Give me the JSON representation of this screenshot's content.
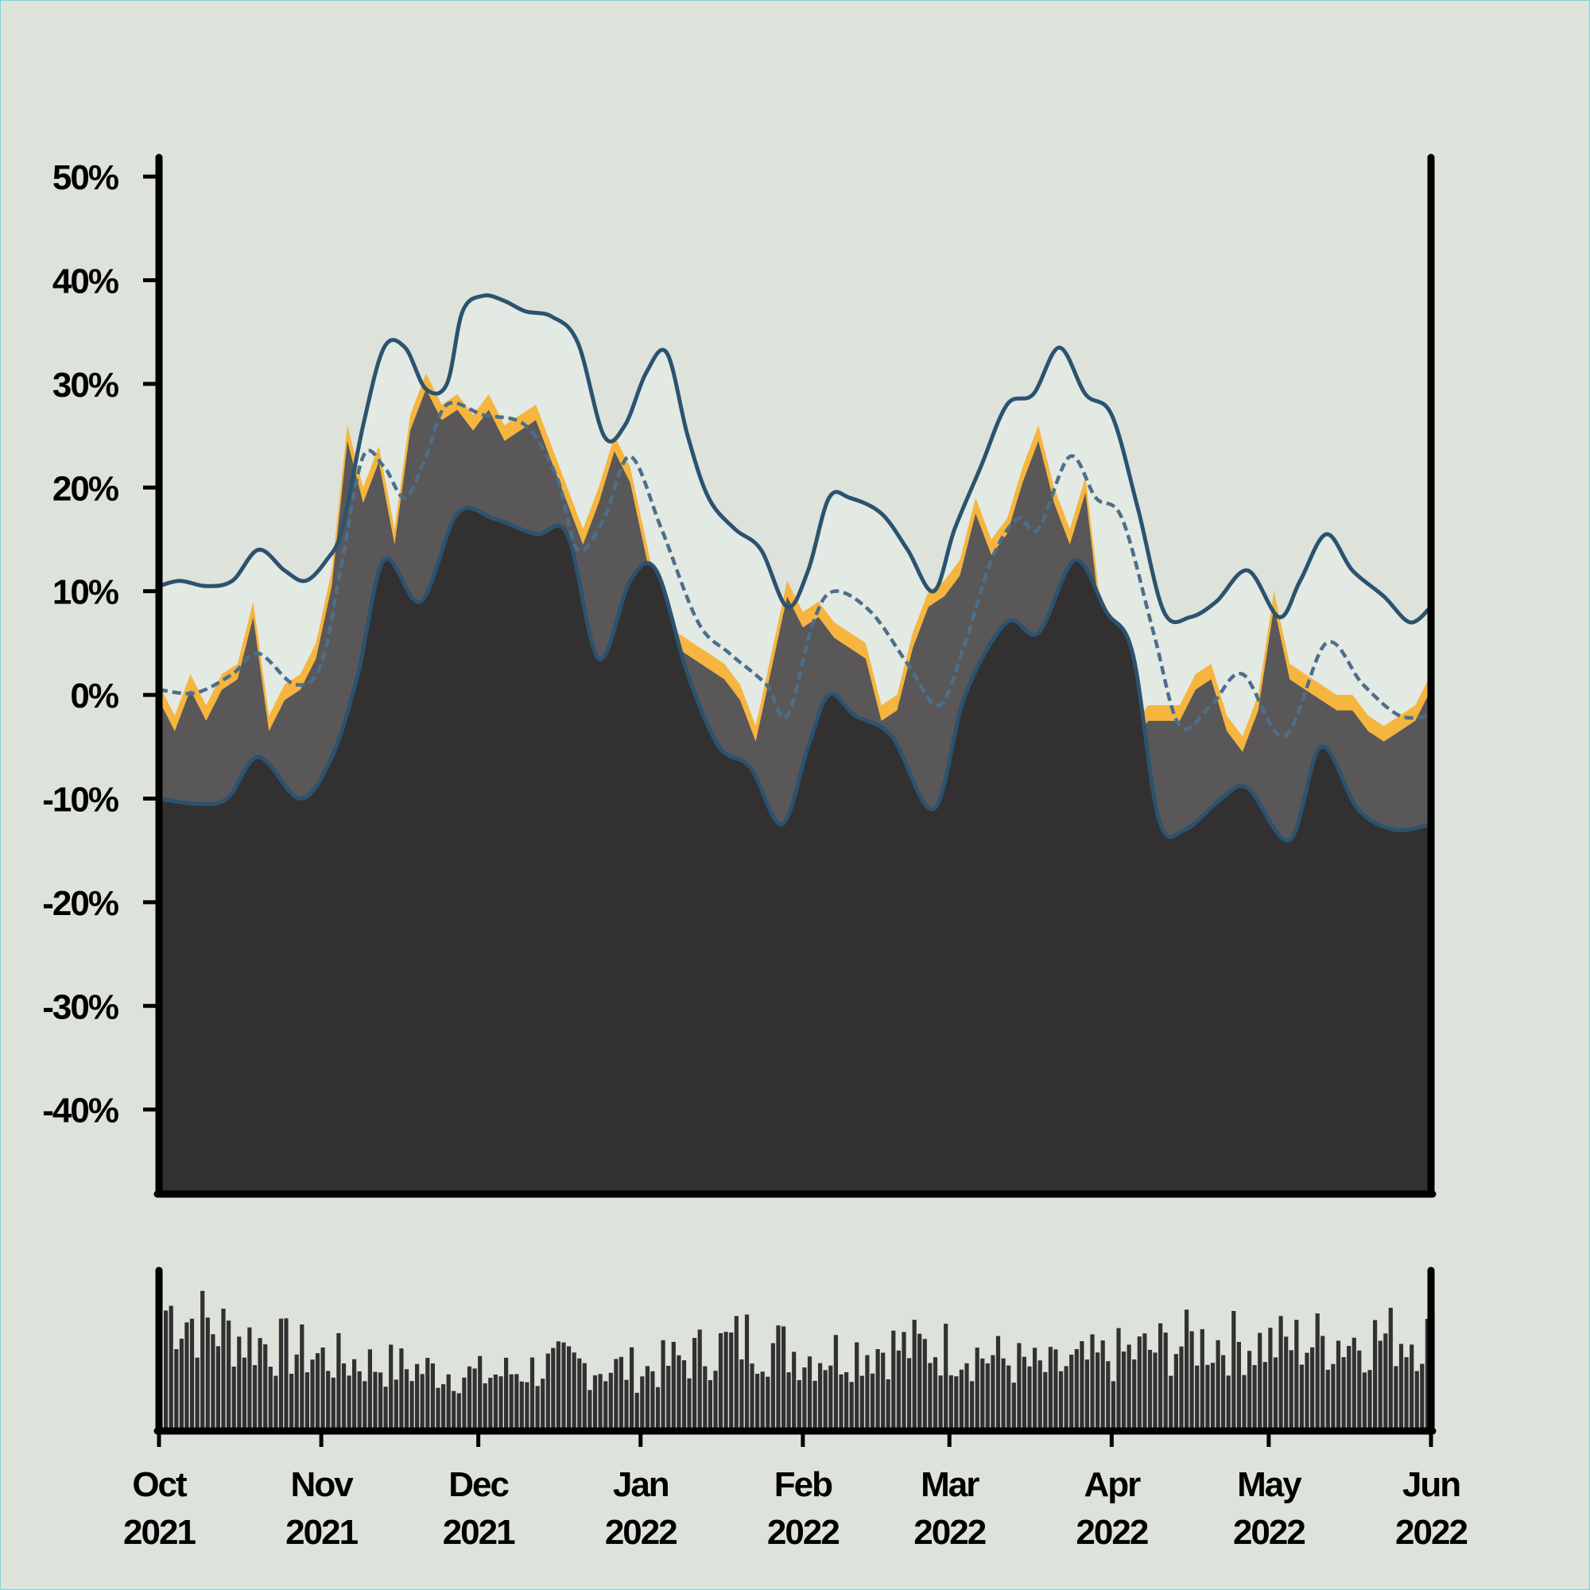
{
  "chart_data": {
    "type": "area",
    "title": "",
    "xlabel": "",
    "ylabel": "",
    "ylim": [
      -48,
      52
    ],
    "y_ticks": [
      {
        "value": 50,
        "label": "50%"
      },
      {
        "value": 40,
        "label": "40%"
      },
      {
        "value": 30,
        "label": "30%"
      },
      {
        "value": 20,
        "label": "20%"
      },
      {
        "value": 10,
        "label": "10%"
      },
      {
        "value": 0,
        "label": "0%"
      },
      {
        "value": -10,
        "label": "-10%"
      },
      {
        "value": -20,
        "label": "-20%"
      },
      {
        "value": -30,
        "label": "-30%"
      },
      {
        "value": -40,
        "label": "-40%"
      }
    ],
    "x_range": [
      "2021-10-01",
      "2022-06-01"
    ],
    "x_ticks": [
      {
        "date": "2021-10-01",
        "month": "Oct",
        "year": "2021"
      },
      {
        "date": "2021-11-01",
        "month": "Nov",
        "year": "2021"
      },
      {
        "date": "2021-12-01",
        "month": "Dec",
        "year": "2021"
      },
      {
        "date": "2022-01-01",
        "month": "Jan",
        "year": "2022"
      },
      {
        "date": "2022-02-01",
        "month": "Feb",
        "year": "2022"
      },
      {
        "date": "2022-03-01",
        "month": "Mar",
        "year": "2022"
      },
      {
        "date": "2022-04-01",
        "month": "Apr",
        "year": "2022"
      },
      {
        "date": "2022-05-01",
        "month": "May",
        "year": "2022"
      },
      {
        "date": "2022-06-01",
        "month": "Jun",
        "year": "2022"
      }
    ],
    "grid": false,
    "colors": {
      "background": "#dde2db",
      "band": "#e3e9e3",
      "lower_area": "#323031",
      "mid_area": "#5a5758",
      "value_highlight": "#f6b53e",
      "band_line": "#2b5370",
      "mean_line": "#4c6f8a",
      "axis": "#000000"
    },
    "series": [
      {
        "role": "value",
        "values": [
          [
            "2021-10-01",
            1
          ],
          [
            "2021-10-04",
            -2
          ],
          [
            "2021-10-07",
            2
          ],
          [
            "2021-10-10",
            -1
          ],
          [
            "2021-10-13",
            2
          ],
          [
            "2021-10-16",
            3
          ],
          [
            "2021-10-19",
            9
          ],
          [
            "2021-10-22",
            -2
          ],
          [
            "2021-10-25",
            1
          ],
          [
            "2021-10-28",
            2
          ],
          [
            "2021-10-31",
            5
          ],
          [
            "2021-11-03",
            12
          ],
          [
            "2021-11-06",
            26
          ],
          [
            "2021-11-09",
            20
          ],
          [
            "2021-11-12",
            24
          ],
          [
            "2021-11-15",
            16
          ],
          [
            "2021-11-18",
            27
          ],
          [
            "2021-11-21",
            31
          ],
          [
            "2021-11-24",
            28
          ],
          [
            "2021-11-27",
            29
          ],
          [
            "2021-11-30",
            27
          ],
          [
            "2021-12-03",
            29
          ],
          [
            "2021-12-06",
            26
          ],
          [
            "2021-12-09",
            27
          ],
          [
            "2021-12-12",
            28
          ],
          [
            "2021-12-15",
            24
          ],
          [
            "2021-12-18",
            20
          ],
          [
            "2021-12-21",
            16
          ],
          [
            "2021-12-24",
            20
          ],
          [
            "2021-12-27",
            25
          ],
          [
            "2021-12-30",
            22
          ],
          [
            "2022-01-02",
            15
          ],
          [
            "2022-01-05",
            8
          ],
          [
            "2022-01-08",
            6
          ],
          [
            "2022-01-11",
            5
          ],
          [
            "2022-01-14",
            4
          ],
          [
            "2022-01-17",
            3
          ],
          [
            "2022-01-20",
            1
          ],
          [
            "2022-01-23",
            -3
          ],
          [
            "2022-01-26",
            4
          ],
          [
            "2022-01-29",
            11
          ],
          [
            "2022-02-01",
            8
          ],
          [
            "2022-02-04",
            9
          ],
          [
            "2022-02-07",
            7
          ],
          [
            "2022-02-10",
            6
          ],
          [
            "2022-02-13",
            5
          ],
          [
            "2022-02-16",
            -1
          ],
          [
            "2022-02-19",
            0
          ],
          [
            "2022-02-22",
            6
          ],
          [
            "2022-02-25",
            10
          ],
          [
            "2022-02-28",
            11
          ],
          [
            "2022-03-03",
            13
          ],
          [
            "2022-03-06",
            19
          ],
          [
            "2022-03-09",
            15
          ],
          [
            "2022-03-12",
            17
          ],
          [
            "2022-03-15",
            22
          ],
          [
            "2022-03-18",
            26
          ],
          [
            "2022-03-21",
            20
          ],
          [
            "2022-03-24",
            16
          ],
          [
            "2022-03-27",
            21
          ],
          [
            "2022-03-30",
            8
          ],
          [
            "2022-04-02",
            6
          ],
          [
            "2022-04-05",
            -3
          ],
          [
            "2022-04-08",
            -1
          ],
          [
            "2022-04-11",
            -1
          ],
          [
            "2022-04-14",
            -1
          ],
          [
            "2022-04-17",
            2
          ],
          [
            "2022-04-20",
            3
          ],
          [
            "2022-04-23",
            -2
          ],
          [
            "2022-04-26",
            -4
          ],
          [
            "2022-04-29",
            0
          ],
          [
            "2022-05-02",
            10
          ],
          [
            "2022-05-05",
            3
          ],
          [
            "2022-05-08",
            2
          ],
          [
            "2022-05-11",
            1
          ],
          [
            "2022-05-14",
            0
          ],
          [
            "2022-05-17",
            0
          ],
          [
            "2022-05-20",
            -2
          ],
          [
            "2022-05-23",
            -3
          ],
          [
            "2022-05-26",
            -2
          ],
          [
            "2022-05-29",
            -1
          ],
          [
            "2022-06-01",
            2
          ]
        ]
      },
      {
        "role": "mean",
        "values": [
          [
            "2021-10-01",
            0.5
          ],
          [
            "2021-10-08",
            0.2
          ],
          [
            "2021-10-15",
            2
          ],
          [
            "2021-10-20",
            4
          ],
          [
            "2021-10-27",
            1
          ],
          [
            "2021-11-01",
            3
          ],
          [
            "2021-11-05",
            13
          ],
          [
            "2021-11-09",
            23
          ],
          [
            "2021-11-13",
            22
          ],
          [
            "2021-11-17",
            19
          ],
          [
            "2021-11-21",
            23
          ],
          [
            "2021-11-25",
            28
          ],
          [
            "2021-12-02",
            27
          ],
          [
            "2021-12-10",
            26
          ],
          [
            "2021-12-16",
            21
          ],
          [
            "2021-12-20",
            14
          ],
          [
            "2021-12-25",
            17
          ],
          [
            "2021-12-30",
            23
          ],
          [
            "2022-01-05",
            16
          ],
          [
            "2022-01-12",
            7
          ],
          [
            "2022-01-18",
            4
          ],
          [
            "2022-01-25",
            1
          ],
          [
            "2022-01-29",
            -2
          ],
          [
            "2022-02-03",
            7
          ],
          [
            "2022-02-07",
            10
          ],
          [
            "2022-02-14",
            8
          ],
          [
            "2022-02-21",
            3
          ],
          [
            "2022-02-27",
            -1
          ],
          [
            "2022-03-04",
            5
          ],
          [
            "2022-03-09",
            13
          ],
          [
            "2022-03-14",
            17
          ],
          [
            "2022-03-18",
            16
          ],
          [
            "2022-03-24",
            23
          ],
          [
            "2022-03-29",
            19
          ],
          [
            "2022-04-03",
            17
          ],
          [
            "2022-04-09",
            6
          ],
          [
            "2022-04-14",
            -3
          ],
          [
            "2022-04-20",
            -1
          ],
          [
            "2022-04-26",
            2
          ],
          [
            "2022-05-04",
            -4
          ],
          [
            "2022-05-12",
            5
          ],
          [
            "2022-05-19",
            1
          ],
          [
            "2022-05-26",
            -2
          ],
          [
            "2022-06-01",
            -2
          ]
        ]
      },
      {
        "role": "upper",
        "values": [
          [
            "2021-10-01",
            10.5
          ],
          [
            "2021-10-05",
            11
          ],
          [
            "2021-10-10",
            10.5
          ],
          [
            "2021-10-15",
            11
          ],
          [
            "2021-10-20",
            14
          ],
          [
            "2021-10-25",
            12
          ],
          [
            "2021-10-29",
            11
          ],
          [
            "2021-11-02",
            13
          ],
          [
            "2021-11-05",
            16
          ],
          [
            "2021-11-09",
            26
          ],
          [
            "2021-11-13",
            33.5
          ],
          [
            "2021-11-17",
            33.5
          ],
          [
            "2021-11-21",
            29.5
          ],
          [
            "2021-11-25",
            30
          ],
          [
            "2021-11-28",
            37
          ],
          [
            "2021-12-02",
            38.5
          ],
          [
            "2021-12-06",
            38
          ],
          [
            "2021-12-10",
            37
          ],
          [
            "2021-12-15",
            36.5
          ],
          [
            "2021-12-20",
            34
          ],
          [
            "2021-12-25",
            25
          ],
          [
            "2021-12-29",
            26
          ],
          [
            "2022-01-02",
            31
          ],
          [
            "2022-01-06",
            33
          ],
          [
            "2022-01-10",
            25
          ],
          [
            "2022-01-14",
            19
          ],
          [
            "2022-01-19",
            16
          ],
          [
            "2022-01-24",
            14
          ],
          [
            "2022-01-29",
            8.5
          ],
          [
            "2022-02-02",
            12
          ],
          [
            "2022-02-06",
            19
          ],
          [
            "2022-02-10",
            19
          ],
          [
            "2022-02-16",
            17.5
          ],
          [
            "2022-02-21",
            14
          ],
          [
            "2022-02-26",
            10
          ],
          [
            "2022-03-02",
            16
          ],
          [
            "2022-03-07",
            22
          ],
          [
            "2022-03-12",
            28
          ],
          [
            "2022-03-17",
            29
          ],
          [
            "2022-03-22",
            33.5
          ],
          [
            "2022-03-27",
            29
          ],
          [
            "2022-04-01",
            27
          ],
          [
            "2022-04-06",
            18
          ],
          [
            "2022-04-11",
            8
          ],
          [
            "2022-04-16",
            7.5
          ],
          [
            "2022-04-21",
            9
          ],
          [
            "2022-04-27",
            12
          ],
          [
            "2022-05-03",
            7.5
          ],
          [
            "2022-05-07",
            11
          ],
          [
            "2022-05-12",
            15.5
          ],
          [
            "2022-05-17",
            12
          ],
          [
            "2022-05-23",
            9.5
          ],
          [
            "2022-05-28",
            7
          ],
          [
            "2022-06-01",
            8.5
          ]
        ]
      },
      {
        "role": "lower",
        "values": [
          [
            "2021-10-01",
            -10
          ],
          [
            "2021-10-08",
            -10.5
          ],
          [
            "2021-10-14",
            -10
          ],
          [
            "2021-10-20",
            -6
          ],
          [
            "2021-10-28",
            -10
          ],
          [
            "2021-11-03",
            -6
          ],
          [
            "2021-11-08",
            2
          ],
          [
            "2021-11-13",
            13
          ],
          [
            "2021-11-20",
            9
          ],
          [
            "2021-11-27",
            17.5
          ],
          [
            "2021-12-04",
            17
          ],
          [
            "2021-12-12",
            15.5
          ],
          [
            "2021-12-18",
            15.5
          ],
          [
            "2021-12-24",
            3.5
          ],
          [
            "2021-12-30",
            11
          ],
          [
            "2022-01-04",
            12
          ],
          [
            "2022-01-10",
            2
          ],
          [
            "2022-01-16",
            -5
          ],
          [
            "2022-01-22",
            -7
          ],
          [
            "2022-01-28",
            -12.5
          ],
          [
            "2022-02-02",
            -5
          ],
          [
            "2022-02-06",
            0
          ],
          [
            "2022-02-11",
            -2
          ],
          [
            "2022-02-18",
            -4
          ],
          [
            "2022-02-26",
            -11
          ],
          [
            "2022-03-04",
            0
          ],
          [
            "2022-03-12",
            7
          ],
          [
            "2022-03-18",
            6
          ],
          [
            "2022-03-25",
            13
          ],
          [
            "2022-03-31",
            8
          ],
          [
            "2022-04-05",
            4
          ],
          [
            "2022-04-10",
            -12
          ],
          [
            "2022-04-15",
            -13
          ],
          [
            "2022-04-22",
            -10
          ],
          [
            "2022-04-27",
            -9
          ],
          [
            "2022-05-05",
            -14
          ],
          [
            "2022-05-11",
            -5
          ],
          [
            "2022-05-18",
            -11
          ],
          [
            "2022-05-25",
            -13
          ],
          [
            "2022-06-01",
            -12.5
          ]
        ]
      }
    ],
    "volume_panel": {
      "type": "bar",
      "x_range": [
        "2021-10-01",
        "2022-06-01"
      ],
      "envelope": [
        [
          "2021-10-01",
          0.82
        ],
        [
          "2021-10-16",
          0.62
        ],
        [
          "2021-11-01",
          0.48
        ],
        [
          "2021-11-15",
          0.42
        ],
        [
          "2021-12-01",
          0.36
        ],
        [
          "2021-12-16",
          0.44
        ],
        [
          "2022-01-01",
          0.4
        ],
        [
          "2022-01-20",
          0.62
        ],
        [
          "2022-02-01",
          0.5
        ],
        [
          "2022-02-15",
          0.56
        ],
        [
          "2022-03-01",
          0.55
        ],
        [
          "2022-03-18",
          0.4
        ],
        [
          "2022-04-01",
          0.5
        ],
        [
          "2022-04-16",
          0.6
        ],
        [
          "2022-05-01",
          0.58
        ],
        [
          "2022-05-16",
          0.62
        ],
        [
          "2022-06-01",
          0.64
        ]
      ]
    }
  }
}
